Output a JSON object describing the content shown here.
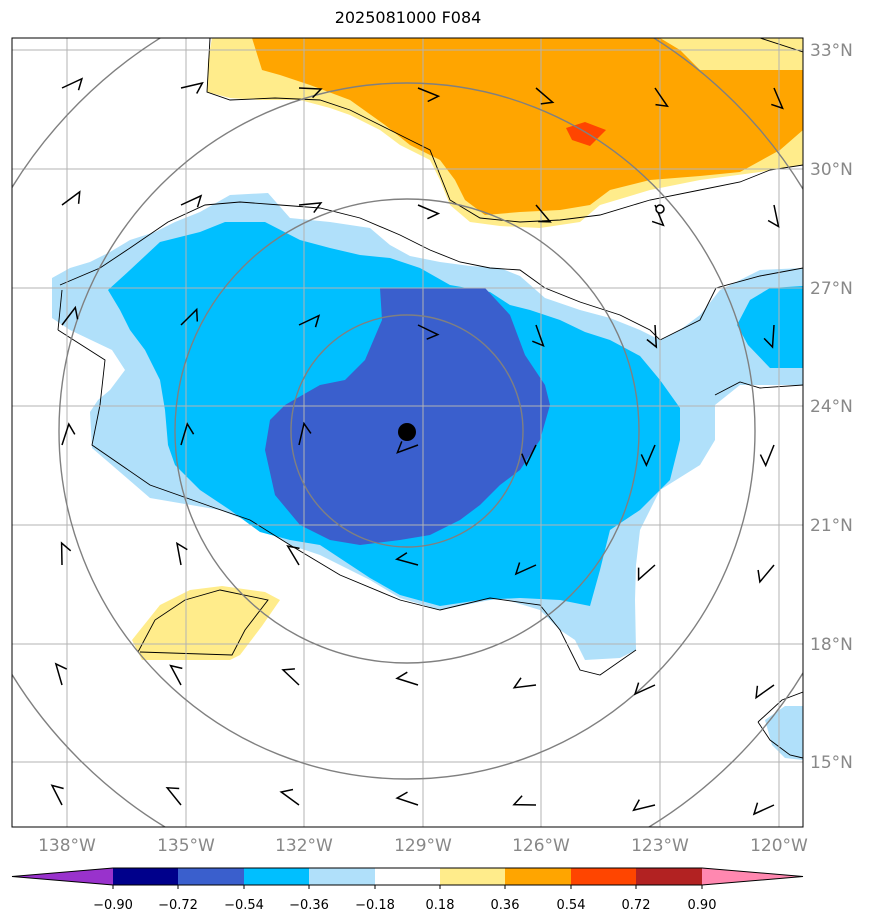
{
  "title": "2025081000 F084",
  "lat_labels": [
    "33°N",
    "30°N",
    "27°N",
    "24°N",
    "21°N",
    "18°N",
    "15°N"
  ],
  "lon_labels": [
    "138°W",
    "135°W",
    "132°W",
    "129°W",
    "126°W",
    "123°W",
    "120°W"
  ],
  "colorbar": {
    "ticks": [
      "−0.90",
      "−0.72",
      "−0.54",
      "−0.36",
      "−0.18",
      "0.18",
      "0.36",
      "0.54",
      "0.72",
      "0.90"
    ],
    "colors": [
      "#9932cc",
      "#00008b",
      "#3a5fcd",
      "#00bfff",
      "#b0e0fa",
      "#ffffff",
      "#ffec8b",
      "#ffa500",
      "#ff4500",
      "#b22222",
      "#ff88b0"
    ]
  },
  "fill_colors": {
    "very_light_blue": "#b0e0fa",
    "light_blue": "#00bfff",
    "medium_blue": "#3a5fcd",
    "light_yellow": "#ffec8b",
    "orange": "#ffa500",
    "red_orange": "#ff4500"
  },
  "storm_center": {
    "lon": -129.4,
    "lat": 23.3
  },
  "range_rings": "concentric grey circles around storm center"
}
